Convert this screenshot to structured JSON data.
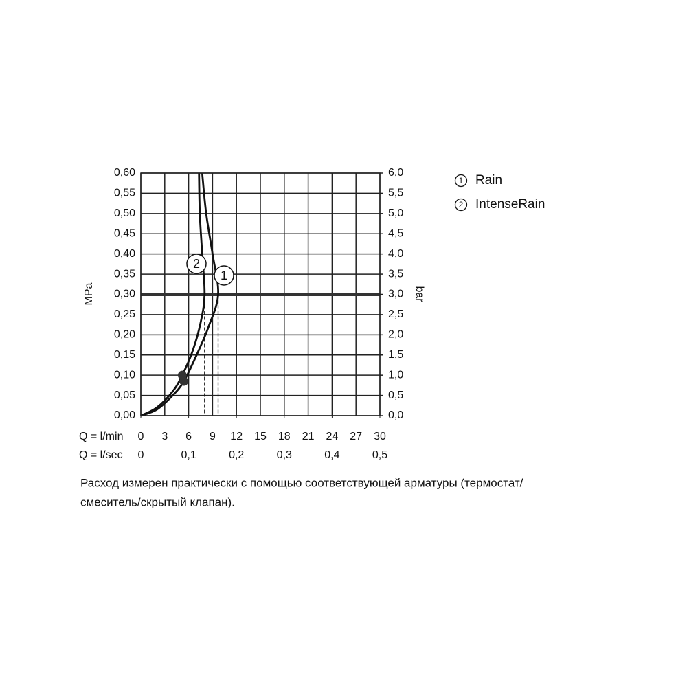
{
  "chart_data": {
    "type": "line",
    "y_axis_label": "MPa",
    "y2_axis_label": "bar",
    "x_row_label": "Q = l/min",
    "x2_row_label": "Q = l/sec",
    "xlim": [
      0,
      30
    ],
    "xticks": [
      0,
      3,
      6,
      9,
      12,
      15,
      18,
      21,
      24,
      27,
      30
    ],
    "x2lim": [
      0,
      0.5
    ],
    "x2ticks": [
      {
        "value": 0,
        "label": "0"
      },
      {
        "value": 0.1,
        "label": "0,1"
      },
      {
        "value": 0.2,
        "label": "0,2"
      },
      {
        "value": 0.3,
        "label": "0,3"
      },
      {
        "value": 0.4,
        "label": "0,4"
      },
      {
        "value": 0.5,
        "label": "0,5"
      }
    ],
    "ylim": [
      0,
      0.6
    ],
    "yticks": [
      {
        "value": 0,
        "label": "0,00"
      },
      {
        "value": 0.05,
        "label": "0,05"
      },
      {
        "value": 0.1,
        "label": "0,10"
      },
      {
        "value": 0.15,
        "label": "0,15"
      },
      {
        "value": 0.2,
        "label": "0,20"
      },
      {
        "value": 0.25,
        "label": "0,25"
      },
      {
        "value": 0.3,
        "label": "0,30"
      },
      {
        "value": 0.35,
        "label": "0,35"
      },
      {
        "value": 0.4,
        "label": "0,40"
      },
      {
        "value": 0.45,
        "label": "0,45"
      },
      {
        "value": 0.5,
        "label": "0,50"
      },
      {
        "value": 0.55,
        "label": "0,55"
      },
      {
        "value": 0.6,
        "label": "0,60"
      }
    ],
    "y2lim": [
      0,
      6
    ],
    "y2ticks": [
      {
        "value": 0,
        "label": "0,0"
      },
      {
        "value": 0.5,
        "label": "0,5"
      },
      {
        "value": 1,
        "label": "1,0"
      },
      {
        "value": 1.5,
        "label": "1,5"
      },
      {
        "value": 2,
        "label": "2,0"
      },
      {
        "value": 2.5,
        "label": "2,5"
      },
      {
        "value": 3,
        "label": "3,0"
      },
      {
        "value": 3.5,
        "label": "3,5"
      },
      {
        "value": 4,
        "label": "4,0"
      },
      {
        "value": 4.5,
        "label": "4,5"
      },
      {
        "value": 5,
        "label": "5,0"
      },
      {
        "value": 5.5,
        "label": "5,5"
      },
      {
        "value": 6,
        "label": "6,0"
      }
    ],
    "grid": true,
    "reference_line": 0.3,
    "series": [
      {
        "name": "Rain",
        "label": "1",
        "color": "#111111",
        "x": [
          0,
          2,
          4,
          5.4,
          7,
          8.5,
          9.7,
          9,
          8.2,
          7.7
        ],
        "values": [
          0,
          0.015,
          0.05,
          0.085,
          0.15,
          0.22,
          0.3,
          0.4,
          0.5,
          0.6
        ]
      },
      {
        "name": "IntenseRain",
        "label": "2",
        "color": "#111111",
        "x": [
          0,
          2,
          4,
          5.2,
          6.5,
          7.5,
          8,
          7.7,
          7.4,
          7.3
        ],
        "values": [
          0,
          0.02,
          0.06,
          0.1,
          0.16,
          0.23,
          0.3,
          0.4,
          0.5,
          0.6
        ]
      }
    ],
    "markers": {
      "x": [
        5.4,
        5.2
      ],
      "y": [
        0.085,
        0.1
      ]
    },
    "footnote": [
      "Расход измерен практически с помощью соответствующей арматуры (термостат/",
      "смеситель/скрытый клапан)."
    ]
  }
}
